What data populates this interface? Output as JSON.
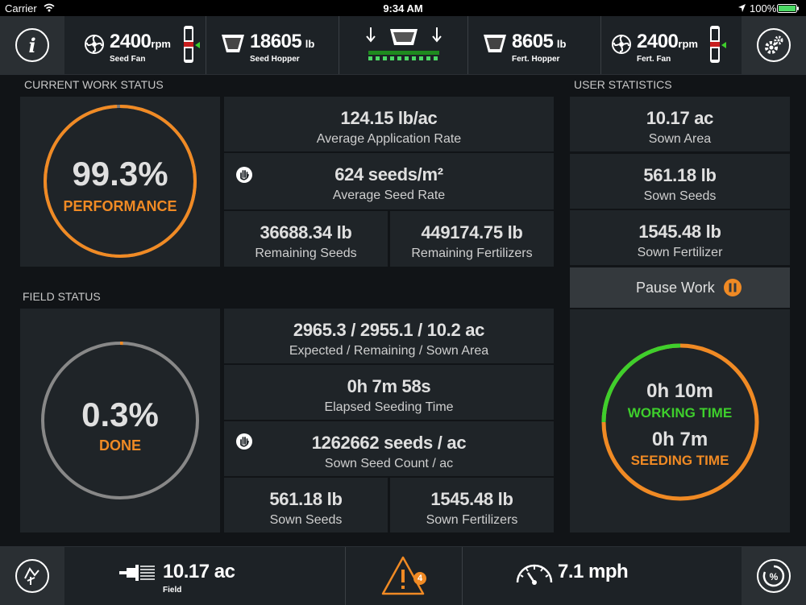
{
  "status_bar": {
    "carrier": "Carrier",
    "time": "9:34 AM",
    "battery": "100%"
  },
  "top_bar": {
    "seed_fan": {
      "value": "2400",
      "unit": "rpm",
      "label": "Seed Fan"
    },
    "seed_hopper": {
      "value": "18605",
      "unit": "lb",
      "label": "Seed Hopper"
    },
    "fert_hopper": {
      "value": "8605",
      "unit": "lb",
      "label": "Fert. Hopper"
    },
    "fert_fan": {
      "value": "2400",
      "unit": "rpm",
      "label": "Fert. Fan"
    }
  },
  "current_work_status": {
    "title": "CURRENT WORK STATUS",
    "performance_value": "99.3%",
    "performance_label": "PERFORMANCE",
    "performance_fraction": 0.993,
    "avg_app_rate": {
      "value": "124.15 lb/ac",
      "label": "Average Application Rate"
    },
    "avg_seed_rate": {
      "value": "624 seeds/m²",
      "label": "Average Seed Rate"
    },
    "remaining_seeds": {
      "value": "36688.34 lb",
      "label": "Remaining Seeds"
    },
    "remaining_fertilizers": {
      "value": "449174.75 lb",
      "label": "Remaining Fertilizers"
    }
  },
  "field_status": {
    "title": "FIELD STATUS",
    "done_value": "0.3%",
    "done_label": "DONE",
    "done_fraction": 0.003,
    "area": {
      "value": "2965.3 / 2955.1 / 10.2 ac",
      "label": "Expected / Remaining / Sown Area"
    },
    "elapsed": {
      "value": "0h 7m 58s",
      "label": "Elapsed Seeding Time"
    },
    "seed_count": {
      "value": "1262662 seeds / ac",
      "label": "Sown Seed Count / ac"
    },
    "sown_seeds": {
      "value": "561.18 lb",
      "label": "Sown Seeds"
    },
    "sown_fertilizers": {
      "value": "1545.48 lb",
      "label": "Sown Fertilizers"
    }
  },
  "user_statistics": {
    "title": "USER STATISTICS",
    "sown_area": {
      "value": "10.17 ac",
      "label": "Sown Area"
    },
    "sown_seeds": {
      "value": "561.18 lb",
      "label": "Sown Seeds"
    },
    "sown_fertilizer": {
      "value": "1545.48 lb",
      "label": "Sown Fertilizer"
    },
    "pause_label": "Pause Work",
    "working_time": {
      "value": "0h 10m",
      "label": "WORKING TIME"
    },
    "seeding_time": {
      "value": "0h 7m",
      "label": "SEEDING TIME"
    },
    "working_time_fraction": 0.25
  },
  "bottom_bar": {
    "field": {
      "value": "10.17 ac",
      "label": "Field"
    },
    "alerts_count": "4",
    "speed": "7.1 mph"
  },
  "colors": {
    "accent": "#f08a24",
    "green": "#3ecf2c",
    "panel": "#1f2428",
    "background": "#111417"
  }
}
